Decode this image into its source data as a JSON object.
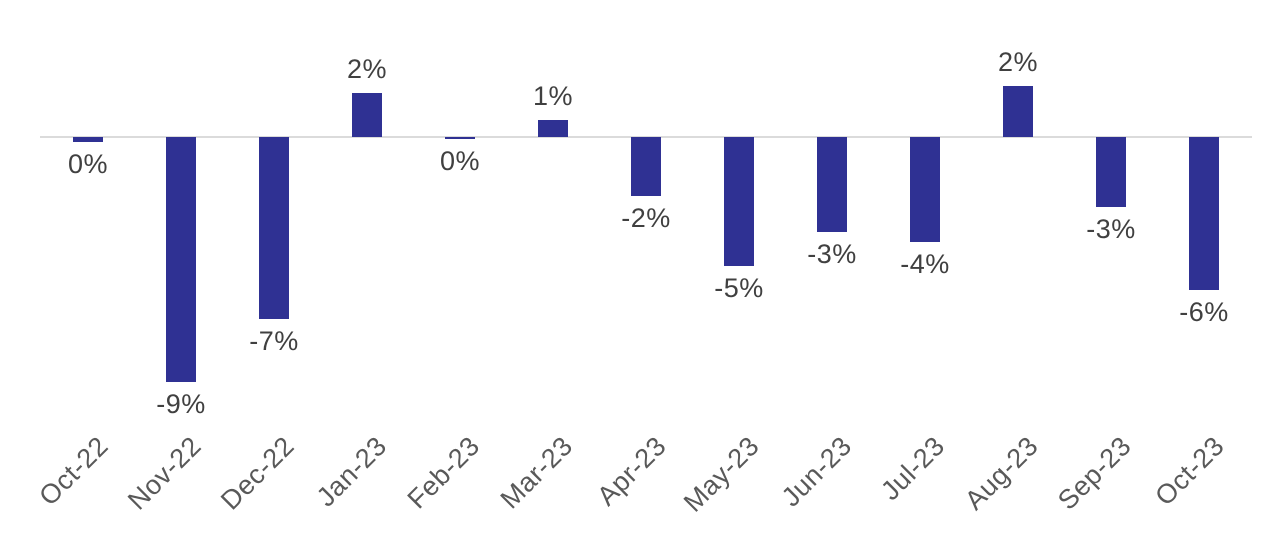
{
  "chart_data": {
    "type": "bar",
    "title": "",
    "categories": [
      "Oct-22",
      "Nov-22",
      "Dec-22",
      "Jan-23",
      "Feb-23",
      "Mar-23",
      "Apr-23",
      "May-23",
      "Jun-23",
      "Jul-23",
      "Aug-23",
      "Sep-23",
      "Oct-23"
    ],
    "values": [
      -0.2,
      -9.0,
      -6.7,
      1.6,
      -0.05,
      0.63,
      -2.17,
      -4.75,
      -3.5,
      -3.86,
      1.87,
      -2.57,
      -5.62
    ],
    "point_labels": [
      "0%",
      "-9%",
      "-7%",
      "2%",
      "0%",
      "1%",
      "-2%",
      "-5%",
      "-3%",
      "-4%",
      "2%",
      "-3%",
      "-6%"
    ],
    "xlabel": "",
    "ylabel": "",
    "ylim": [
      -10,
      3
    ],
    "grid": false,
    "legend": "none",
    "baseline": 0,
    "colors": {
      "bar": "#2F3193",
      "axis_line": "#dbdbdb",
      "value_label": "#404040",
      "tick_label": "#595959",
      "background": "#ffffff"
    }
  }
}
